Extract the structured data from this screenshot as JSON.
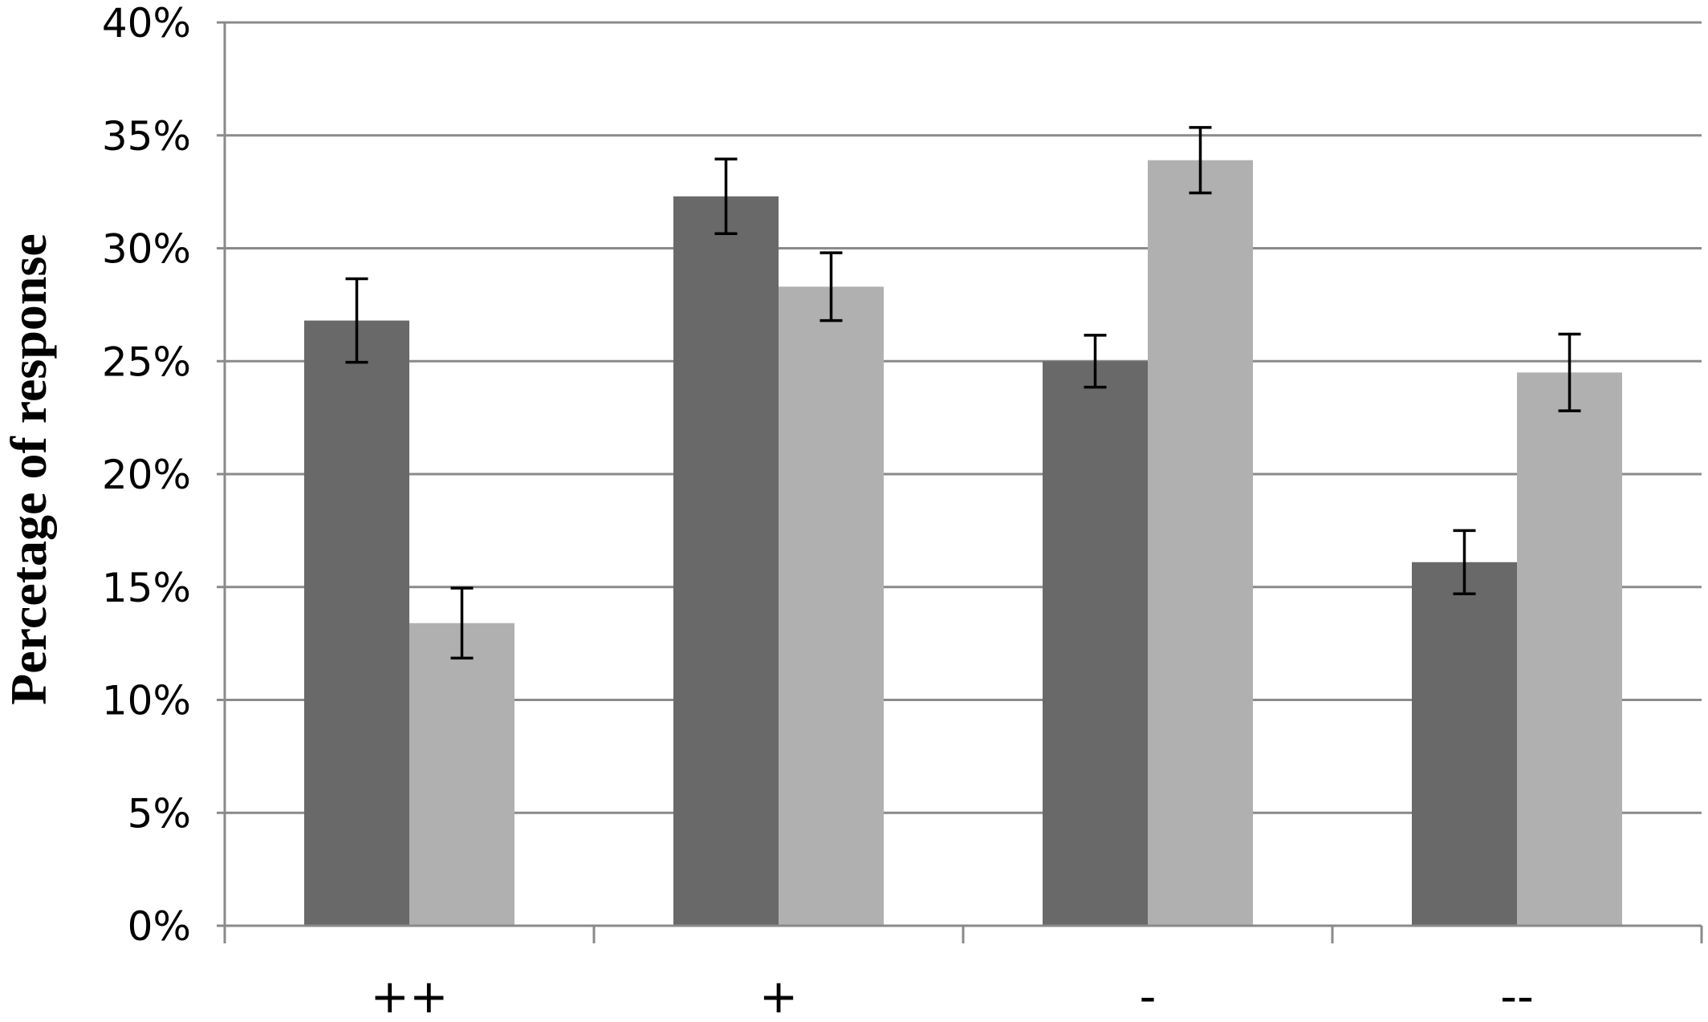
{
  "chart_data": {
    "type": "bar",
    "title": "",
    "xlabel": "",
    "ylabel": "Percetage of response",
    "categories": [
      "++",
      "+",
      "-",
      "--"
    ],
    "ylim": [
      0,
      40
    ],
    "ytick_step": 5,
    "ytick_labels": [
      "0%",
      "5%",
      "10%",
      "15%",
      "20%",
      "25%",
      "30%",
      "35%",
      "40%"
    ],
    "grid": true,
    "legend": "none",
    "series": [
      {
        "color": "#696969",
        "values": [
          26.8,
          32.3,
          25.0,
          16.1
        ],
        "errors": [
          1.85,
          1.65,
          1.15,
          1.4
        ]
      },
      {
        "color": "#b0b0b0",
        "values": [
          13.4,
          28.3,
          33.9,
          24.5
        ],
        "errors": [
          1.55,
          1.5,
          1.45,
          1.7
        ]
      }
    ]
  }
}
